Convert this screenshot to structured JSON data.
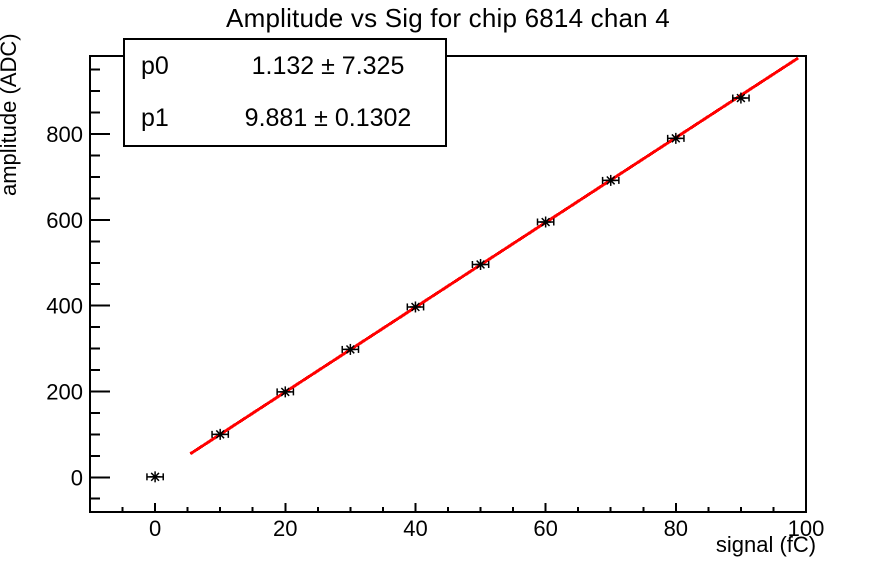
{
  "chart_data": {
    "type": "scatter",
    "title": "Amplitude vs Sig for chip 6814 chan 4",
    "xlabel": "signal (fC)",
    "ylabel": "amplitude (ADC)",
    "xlim": [
      -10,
      100
    ],
    "ylim": [
      -81,
      982
    ],
    "grid": false,
    "x_major_ticks": [
      0,
      20,
      40,
      60,
      80,
      100
    ],
    "x_minor_step": 5,
    "y_major_ticks": [
      0,
      200,
      400,
      600,
      800
    ],
    "y_minor_step": 50,
    "points": {
      "x": [
        0,
        10,
        20,
        30,
        40,
        50,
        60,
        70,
        80,
        90
      ],
      "y": [
        1,
        100,
        199,
        298,
        397,
        496,
        595,
        692,
        790,
        884
      ],
      "xerr": 1.25,
      "marker": "asterisk"
    },
    "fit": {
      "p0": 1.132,
      "p1": 9.881,
      "x_start": 5.4,
      "x_end": 98.8
    },
    "stats": {
      "rows": [
        {
          "name": "p0",
          "value": "1.132 ± 7.325"
        },
        {
          "name": "p1",
          "value": "9.881 ± 0.1302"
        }
      ]
    },
    "colors": {
      "fit_line": "#ff0000",
      "marker": "#000000",
      "frame": "#000000",
      "background": "#ffffff"
    }
  }
}
